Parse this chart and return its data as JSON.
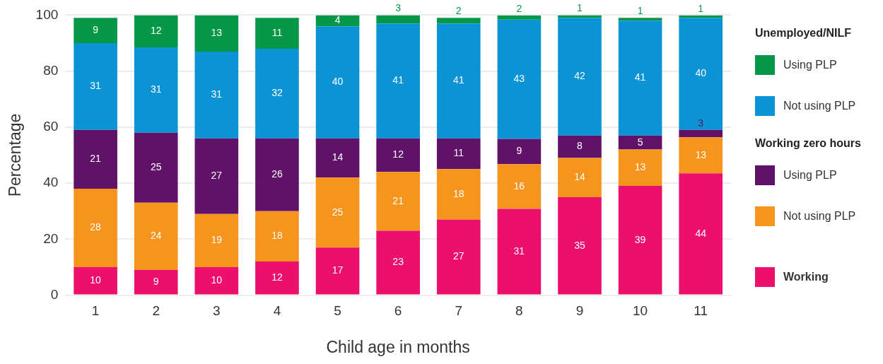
{
  "chart_data": {
    "type": "bar",
    "stacked": true,
    "xlabel": "Child age in months",
    "ylabel": "Percentage",
    "categories": [
      "1",
      "2",
      "3",
      "4",
      "5",
      "6",
      "7",
      "8",
      "9",
      "10",
      "11"
    ],
    "series": [
      {
        "name": "Working",
        "color": "#ec0f6e",
        "values": [
          10,
          9,
          10,
          12,
          17,
          23,
          27,
          30.8,
          35,
          39,
          43.5
        ],
        "value_labels": [
          "10",
          "9",
          "10",
          "12",
          "17",
          "23",
          "27",
          "31",
          "35",
          "39",
          "44"
        ]
      },
      {
        "name": "Not using PLP",
        "color": "#f7941d",
        "values": [
          28,
          24,
          19,
          18,
          25,
          21,
          18,
          16,
          14,
          13,
          12.9
        ],
        "value_labels": [
          "28",
          "24",
          "19",
          "18",
          "25",
          "21",
          "18",
          "16",
          "14",
          "13",
          "13"
        ]
      },
      {
        "name": "Using PLP",
        "color": "#5f1268",
        "values": [
          21,
          25,
          27,
          26,
          14,
          12,
          11,
          9,
          8,
          5,
          2.6
        ],
        "value_labels": [
          "21",
          "25",
          "27",
          "26",
          "14",
          "12",
          "11",
          "9",
          "8",
          "5",
          "3"
        ]
      },
      {
        "name": "Not using PLP",
        "color": "#0a94d6",
        "values": [
          31,
          30.5,
          31,
          32,
          40,
          41,
          41,
          42.6,
          42,
          41,
          40
        ],
        "value_labels": [
          "31",
          "31",
          "31",
          "32",
          "40",
          "41",
          "41",
          "43",
          "42",
          "41",
          "40"
        ]
      },
      {
        "name": "Using PLP",
        "color": "#079748",
        "values": [
          9,
          11.5,
          13,
          11,
          4,
          3,
          2,
          1.5,
          1,
          1,
          0.9
        ],
        "value_labels": [
          "9",
          "12",
          "13",
          "11",
          "4",
          "3",
          "2",
          "2",
          "1",
          "1",
          "1"
        ]
      }
    ],
    "annotations": [
      "Working zero hours",
      "Unemployed/NILF"
    ],
    "ylim": [
      0,
      100
    ],
    "yticks": [
      0,
      20,
      40,
      60,
      80,
      100
    ],
    "grid": "y",
    "legend": "right"
  }
}
